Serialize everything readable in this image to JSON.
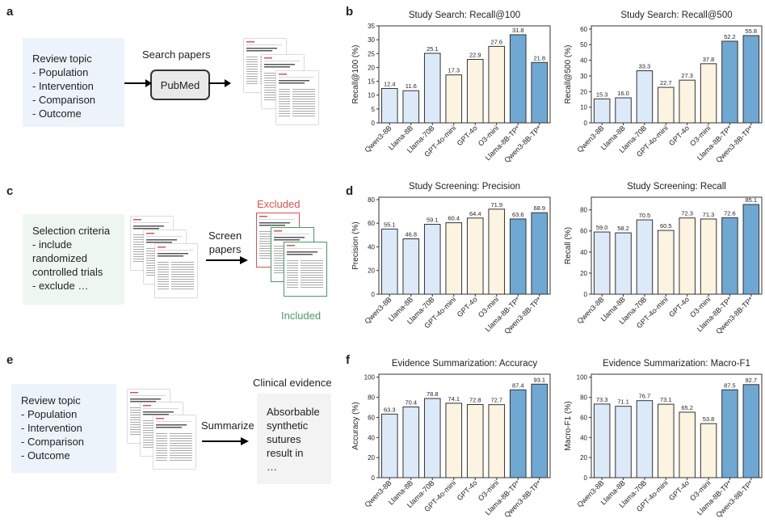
{
  "panels": {
    "a": "a",
    "b": "b",
    "c": "c",
    "d": "d",
    "e": "e",
    "f": "f"
  },
  "workflow_a": {
    "lines": [
      "Review topic",
      "- Population",
      "- Intervention",
      "- Comparison",
      "- Outcome"
    ],
    "action": "Search papers",
    "tool": "PubMed"
  },
  "workflow_c": {
    "lines": [
      "Selection criteria",
      "- include",
      "randomized",
      "controlled trials",
      "- exclude …"
    ],
    "action_lines": [
      "Screen",
      "papers"
    ],
    "excluded": "Excluded",
    "included": "Included",
    "excluded_color": "#d9534f",
    "included_color": "#4a9a6a"
  },
  "workflow_e": {
    "lines": [
      "Review topic",
      "- Population",
      "- Intervention",
      "- Comparison",
      "- Outcome"
    ],
    "action": "Summarize",
    "evidence_title": "Clinical evidence",
    "evidence_lines": [
      "Absorbable",
      "synthetic",
      "sutures",
      "result in",
      "…"
    ]
  },
  "colors": {
    "small_open": "#dce9f8",
    "large_open": "#dce9f8",
    "proprietary": "#fdf3e1",
    "ours": "#6fa8d2",
    "edge": "#333333"
  },
  "chart_data": [
    {
      "id": "b1",
      "type": "bar",
      "title": "Study Search: Recall@100",
      "ylabel": "Recall@100 (%)",
      "categories": [
        "Qwen3-8B",
        "Llama-8B",
        "Llama-70B",
        "GPT-4o-mini",
        "GPT-4o",
        "O3-mini",
        "Llama-8B-TP*",
        "Qwen3-8B-TP*"
      ],
      "values": [
        12.4,
        11.6,
        25.1,
        17.3,
        22.9,
        27.6,
        31.8,
        21.8
      ],
      "groups": [
        "open",
        "open",
        "open",
        "prop",
        "prop",
        "prop",
        "ours",
        "ours"
      ],
      "ylim": [
        0,
        35
      ],
      "yticks": [
        0,
        5,
        10,
        15,
        20,
        25,
        30,
        35
      ]
    },
    {
      "id": "b2",
      "type": "bar",
      "title": "Study Search: Recall@500",
      "ylabel": "Recall@500 (%)",
      "categories": [
        "Qwen3-8B",
        "Llama-8B",
        "Llama-70B",
        "GPT-4o-mini",
        "GPT-4o",
        "O3-mini",
        "Llama-8B-TP*",
        "Qwen3-8B-TP*"
      ],
      "values": [
        15.3,
        16.0,
        33.3,
        22.7,
        27.3,
        37.8,
        52.2,
        55.8
      ],
      "groups": [
        "open",
        "open",
        "open",
        "prop",
        "prop",
        "prop",
        "ours",
        "ours"
      ],
      "ylim": [
        0,
        62
      ],
      "yticks": [
        0,
        10,
        20,
        30,
        40,
        50,
        60
      ]
    },
    {
      "id": "d1",
      "type": "bar",
      "title": "Study Screening: Precision",
      "ylabel": "Precision (%)",
      "categories": [
        "Qwen3-8B",
        "Llama-8B",
        "Llama-70B",
        "GPT-4o-mini",
        "GPT-4o",
        "O3-mini",
        "Llama-8B-TP*",
        "Qwen3-8B-TP*"
      ],
      "values": [
        55.1,
        46.8,
        59.1,
        60.4,
        64.4,
        71.9,
        63.6,
        68.9
      ],
      "groups": [
        "open",
        "open",
        "open",
        "prop",
        "prop",
        "prop",
        "ours",
        "ours"
      ],
      "ylim": [
        0,
        82
      ],
      "yticks": [
        0,
        20,
        40,
        60,
        80
      ]
    },
    {
      "id": "d2",
      "type": "bar",
      "title": "Study Screening: Recall",
      "ylabel": "Recall (%)",
      "categories": [
        "Qwen3-8B",
        "Llama-8B",
        "Llama-70B",
        "GPT-4o-mini",
        "GPT-4o",
        "O3-mini",
        "Llama-8B-TP*",
        "Qwen3-8B-TP*"
      ],
      "values": [
        59.0,
        58.2,
        70.5,
        60.5,
        72.3,
        71.3,
        72.6,
        85.1
      ],
      "groups": [
        "open",
        "open",
        "open",
        "prop",
        "prop",
        "prop",
        "ours",
        "ours"
      ],
      "ylim": [
        0,
        92
      ],
      "yticks": [
        0,
        20,
        40,
        60,
        80
      ]
    },
    {
      "id": "f1",
      "type": "bar",
      "title": "Evidence Summarization: Accuracy",
      "ylabel": "Accuracy (%)",
      "categories": [
        "Qwen3-8B",
        "Llama-8B",
        "Llama-70B",
        "GPT-4o-mini",
        "GPT-4o",
        "O3-mini",
        "Llama-8B-TP*",
        "Qwen3-8B-TP*"
      ],
      "values": [
        63.3,
        70.4,
        78.8,
        74.1,
        72.8,
        72.7,
        87.4,
        93.1
      ],
      "groups": [
        "open",
        "open",
        "open",
        "prop",
        "prop",
        "prop",
        "ours",
        "ours"
      ],
      "ylim": [
        0,
        103
      ],
      "yticks": [
        0,
        20,
        40,
        60,
        80,
        100
      ]
    },
    {
      "id": "f2",
      "type": "bar",
      "title": "Evidence Summarization: Macro-F1",
      "ylabel": "Macro-F1 (%)",
      "categories": [
        "Qwen3-8B",
        "Llama-8B",
        "Llama-70B",
        "GPT-4o-mini",
        "GPT-4o",
        "O3-mini",
        "Llama-8B-TP*",
        "Qwen3-8B-TP*"
      ],
      "values": [
        73.3,
        71.1,
        76.7,
        73.1,
        65.2,
        53.8,
        87.5,
        92.7
      ],
      "groups": [
        "open",
        "open",
        "open",
        "prop",
        "prop",
        "prop",
        "ours",
        "ours"
      ],
      "ylim": [
        0,
        103
      ],
      "yticks": [
        0,
        20,
        40,
        60,
        80,
        100
      ]
    }
  ]
}
